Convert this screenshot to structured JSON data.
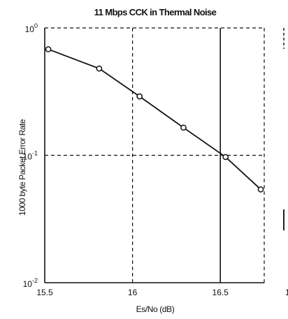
{
  "chart_data": {
    "type": "line",
    "title": "11 Mbps CCK in Thermal Noise",
    "xlabel": "Es/No (dB)",
    "ylabel": "1000 byte Packet Error Rate",
    "xlim": [
      15.5,
      16.75
    ],
    "ylim": [
      0.01,
      1
    ],
    "yscale": "log",
    "x_ticks": [
      15.5,
      16,
      16.5
    ],
    "x_tick_labels": [
      "15.5",
      "16",
      "16.5"
    ],
    "y_ticks": [
      0.01,
      0.1,
      1
    ],
    "y_tick_labels": [
      {
        "base": "10",
        "exp": "-2"
      },
      {
        "base": "10",
        "exp": "-1"
      },
      {
        "base": "10",
        "exp": "0"
      }
    ],
    "grid": true,
    "series": [
      {
        "x": [
          15.52,
          15.81,
          16.04,
          16.29,
          16.53,
          16.73
        ],
        "y": [
          0.68,
          0.48,
          0.29,
          0.165,
          0.097,
          0.054
        ]
      }
    ],
    "colors": {
      "line": "#111111",
      "marker_fill": "#ffffff",
      "axes": "#111111"
    },
    "right_edge_fragment": "1"
  }
}
